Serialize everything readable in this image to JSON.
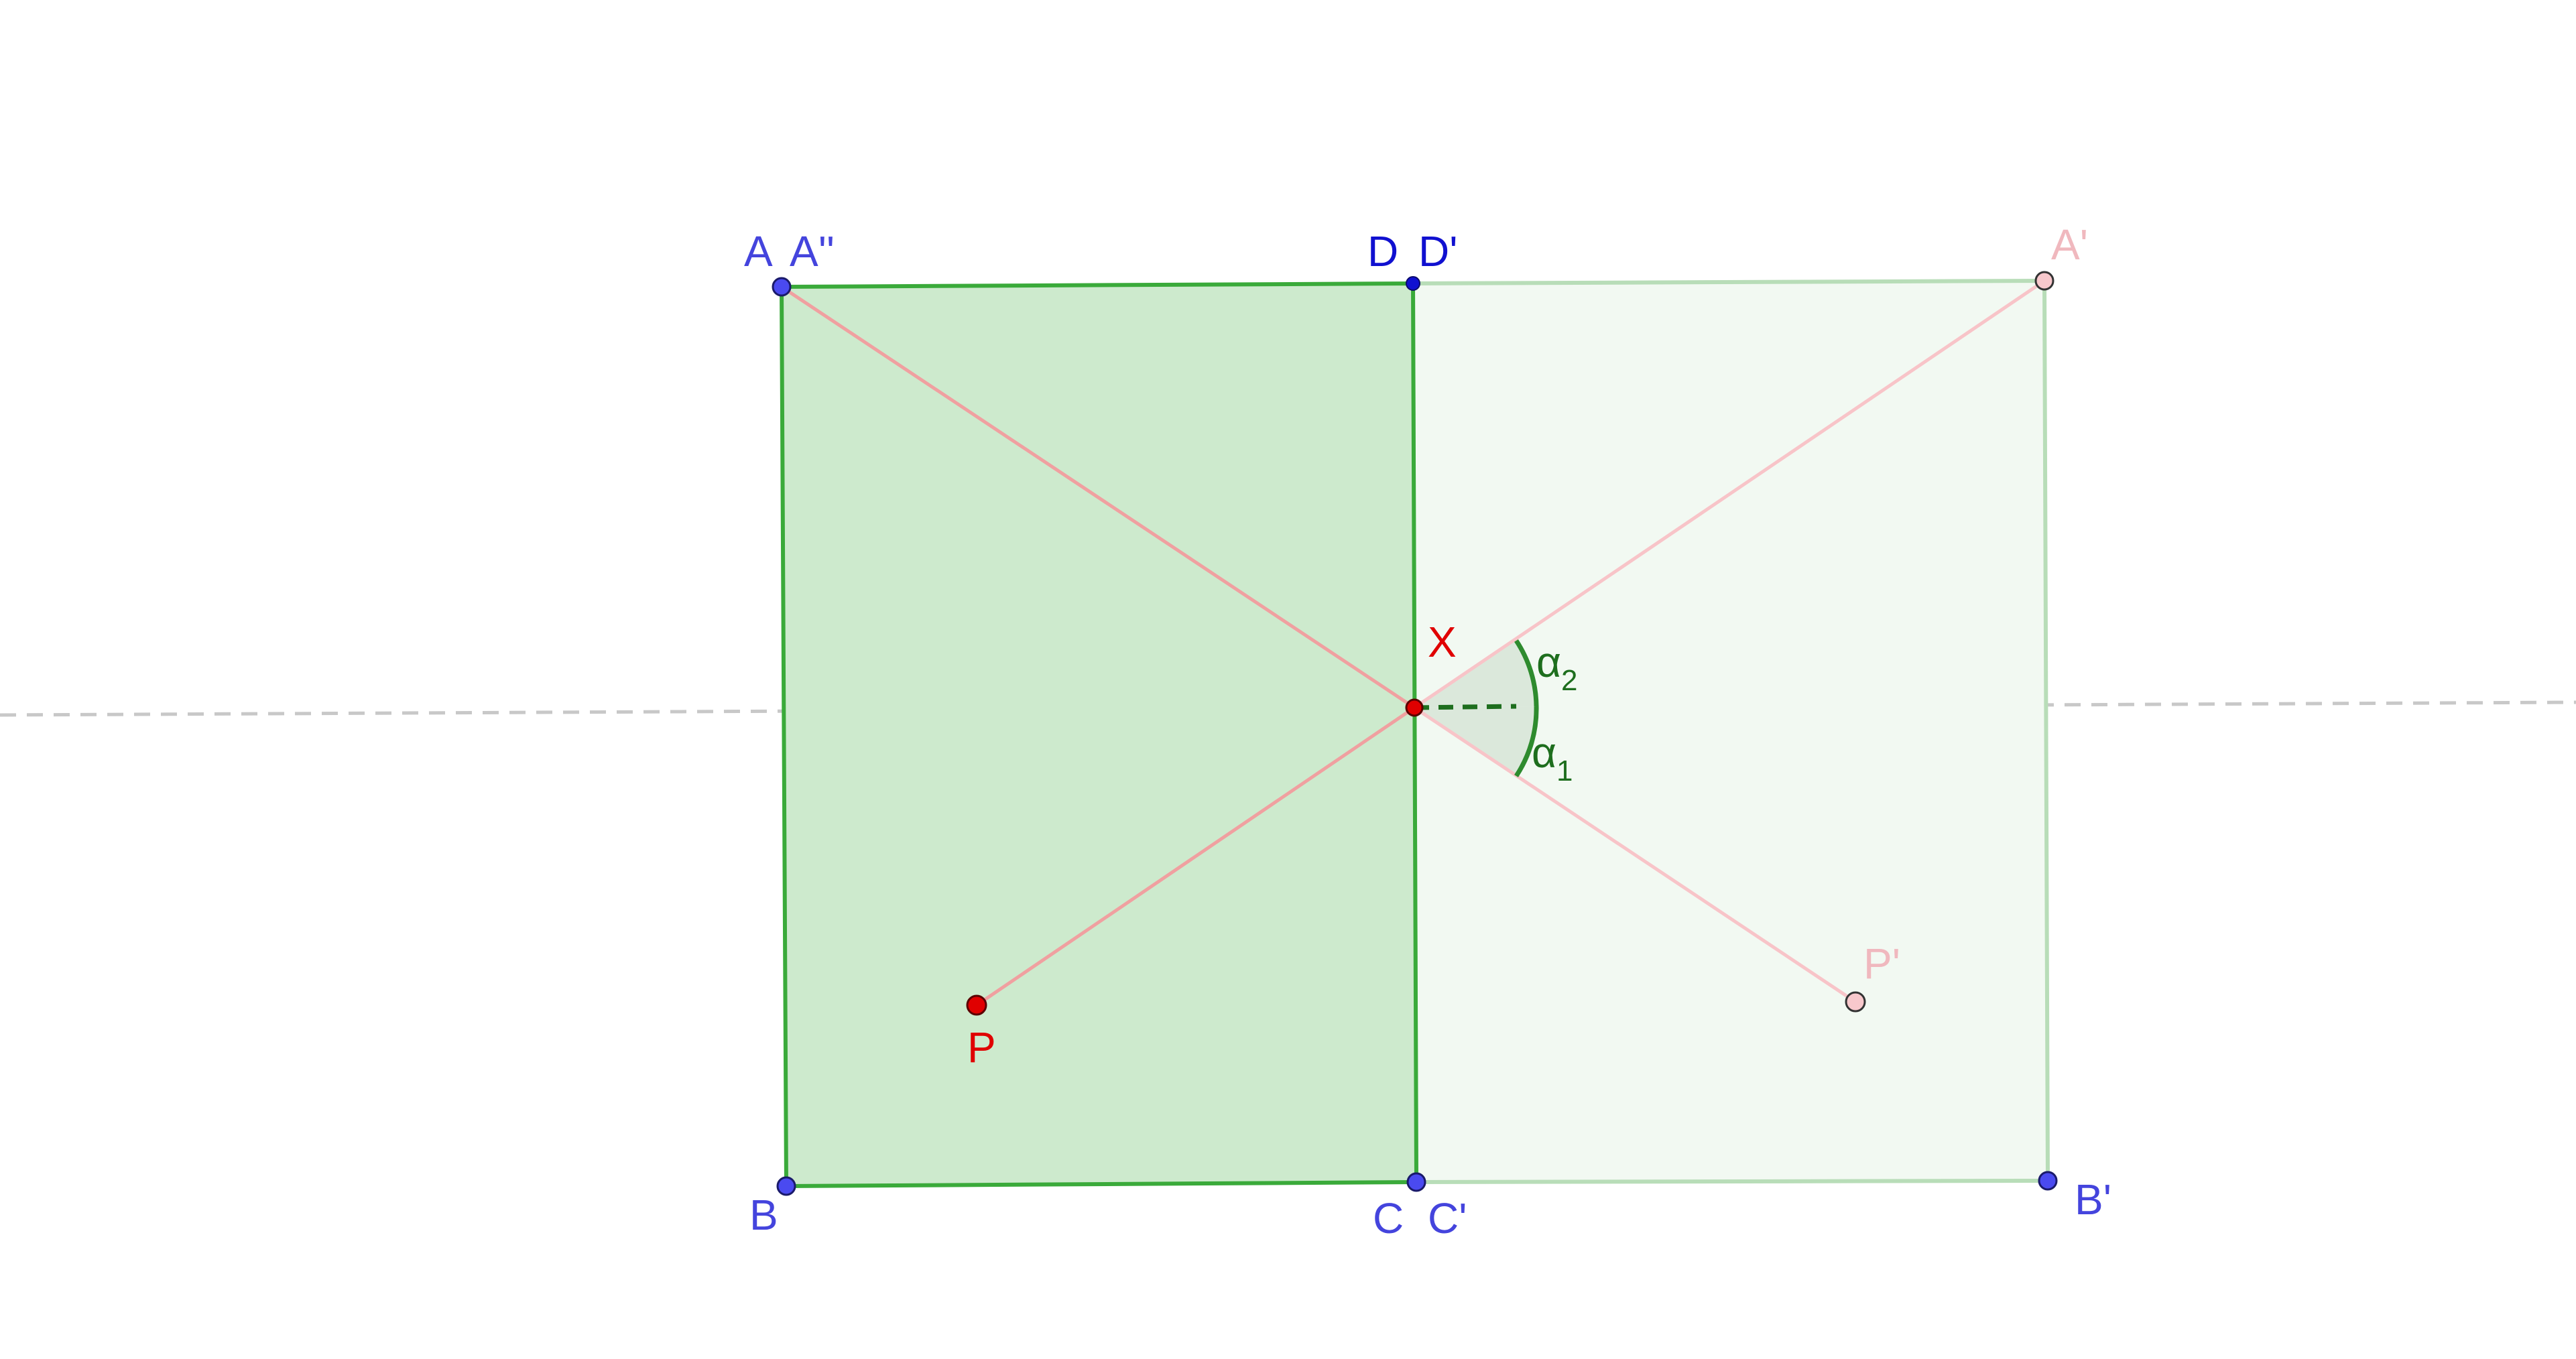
{
  "colors": {
    "rect_fill": "#cdeacd",
    "rect_stroke": "#3aaa3a",
    "reflected_fill": "#f2f9f2",
    "reflected_stroke": "#b8ddb8",
    "ray": "#f0a0a0",
    "ray_reflected": "#f8c4c8",
    "mirror_line": "#c8c8c8",
    "point_blue": "#4a4af0",
    "point_red": "#e00000",
    "point_pink": "#f8c8cc",
    "label_blue": "#4444dd",
    "label_red": "#e00000",
    "label_pink": "#f0b8be",
    "angle_green": "#2e8b2e",
    "angle_fill": "#d4e4d4"
  },
  "labels": {
    "A": "A",
    "A2": "A''",
    "D": "D",
    "D1": "D'",
    "A1": "A'",
    "X": "X",
    "alpha": "α",
    "alpha2_sub": "2",
    "alpha1_sub": "1",
    "P1": "P'",
    "P": "P",
    "B": "B",
    "C": "C",
    "C1": "C'",
    "B1": "B'"
  }
}
